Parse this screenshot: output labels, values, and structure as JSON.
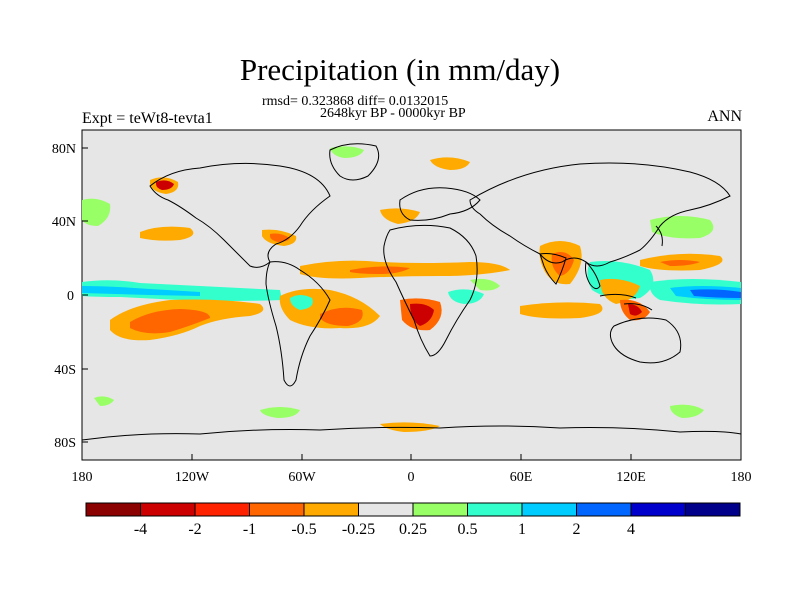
{
  "title": "Precipitation (in mm/day)",
  "stats_line": "rmsd= 0.323868 diff= 0.0132015",
  "period_line": "2648kyr BP - 0000kyr BP",
  "expt_label": "Expt = teWt8-tevta1",
  "season_label": "ANN",
  "y_ticks": [
    "80N",
    "40N",
    "0",
    "40S",
    "80S"
  ],
  "x_ticks": [
    "180",
    "120W",
    "60W",
    "0",
    "60E",
    "120E",
    "180"
  ],
  "colorbar": {
    "colors": [
      "#8b0000",
      "#cc0000",
      "#ff2200",
      "#ff6600",
      "#ffaa00",
      "#e6e6e6",
      "#99ff66",
      "#33ffcc",
      "#00ccff",
      "#0066ff",
      "#0000cc",
      "#00008b"
    ],
    "labels": [
      "-4",
      "-2",
      "-1",
      "-0.5",
      "-0.25",
      "0.25",
      "0.5",
      "1",
      "2",
      "4"
    ]
  },
  "colors": {
    "ocean_land_fill": "#e6e6e6",
    "coast": "#000000"
  }
}
